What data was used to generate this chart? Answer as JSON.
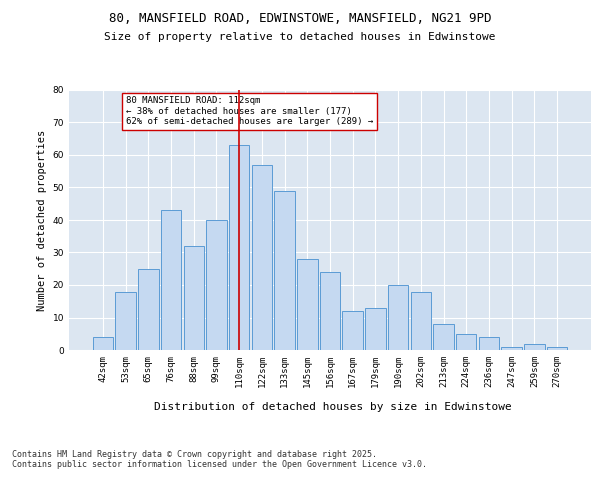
{
  "title_line1": "80, MANSFIELD ROAD, EDWINSTOWE, MANSFIELD, NG21 9PD",
  "title_line2": "Size of property relative to detached houses in Edwinstowe",
  "xlabel": "Distribution of detached houses by size in Edwinstowe",
  "ylabel": "Number of detached properties",
  "categories": [
    "42sqm",
    "53sqm",
    "65sqm",
    "76sqm",
    "88sqm",
    "99sqm",
    "110sqm",
    "122sqm",
    "133sqm",
    "145sqm",
    "156sqm",
    "167sqm",
    "179sqm",
    "190sqm",
    "202sqm",
    "213sqm",
    "224sqm",
    "236sqm",
    "247sqm",
    "259sqm",
    "270sqm"
  ],
  "values": [
    4,
    18,
    25,
    43,
    32,
    40,
    63,
    57,
    49,
    28,
    24,
    12,
    13,
    20,
    18,
    8,
    5,
    4,
    1,
    2,
    1
  ],
  "bar_color": "#c5d9f1",
  "bar_edge_color": "#5b9bd5",
  "ref_line_x": 6,
  "annotation_title": "80 MANSFIELD ROAD: 112sqm",
  "annotation_line2": "← 38% of detached houses are smaller (177)",
  "annotation_line3": "62% of semi-detached houses are larger (289) →",
  "ylim": [
    0,
    80
  ],
  "yticks": [
    0,
    10,
    20,
    30,
    40,
    50,
    60,
    70,
    80
  ],
  "figure_bg": "#ffffff",
  "plot_bg_color": "#dce6f1",
  "grid_color": "#ffffff",
  "footer": "Contains HM Land Registry data © Crown copyright and database right 2025.\nContains public sector information licensed under the Open Government Licence v3.0.",
  "ref_line_color": "#cc0000",
  "annotation_box_edge": "#cc0000"
}
